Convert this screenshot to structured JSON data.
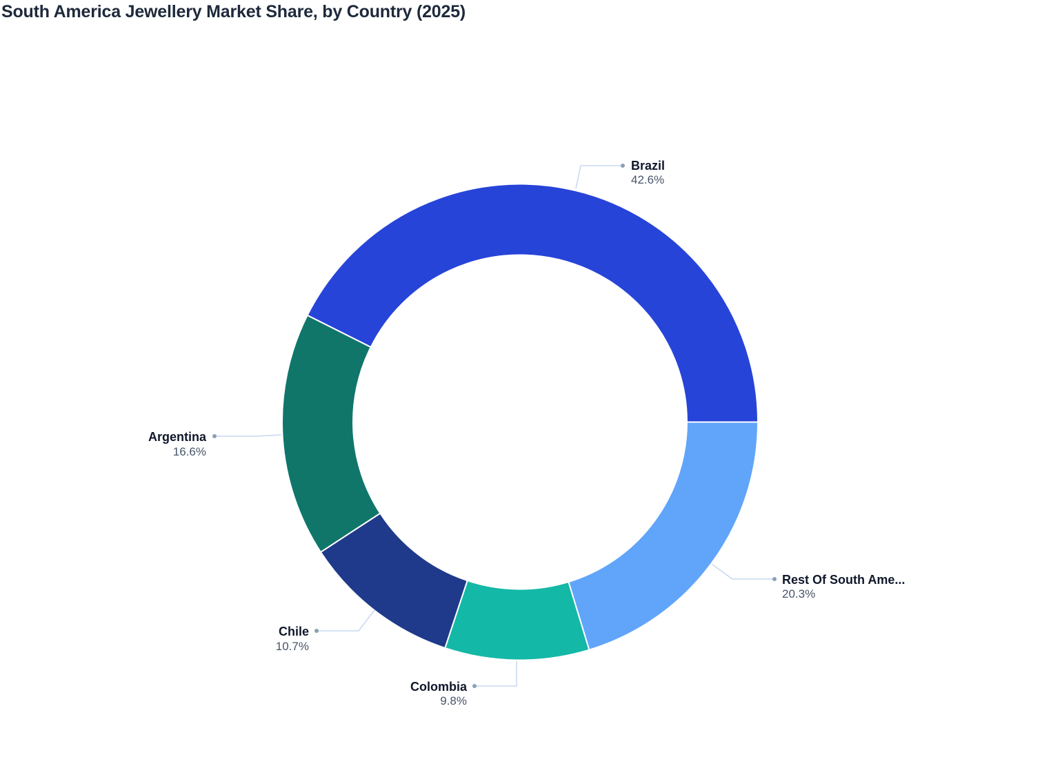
{
  "title": "South America Jewellery Market Share, by Country (2025)",
  "chart_data": {
    "type": "pie",
    "variant": "donut",
    "title": "South America Jewellery Market Share, by Country (2025)",
    "categories": [
      "Brazil",
      "Argentina",
      "Chile",
      "Colombia",
      "Rest Of South America"
    ],
    "values": [
      42.6,
      16.6,
      10.7,
      9.8,
      20.3
    ],
    "unit": "%",
    "colors": [
      "#2744d8",
      "#10766a",
      "#1f3a8a",
      "#14b8a6",
      "#60a5fa"
    ],
    "display_labels": [
      "Brazil",
      "Argentina",
      "Chile",
      "Colombia",
      "Rest Of South Ame..."
    ],
    "value_labels": [
      "42.6%",
      "16.6%",
      "10.7%",
      "9.8%",
      "20.3%"
    ],
    "start_angle_deg": 0,
    "direction": "counterclockwise",
    "legend": "none (leader-line labels)"
  },
  "labels": {
    "brazil": {
      "name": "Brazil",
      "value": "42.6%"
    },
    "argentina": {
      "name": "Argentina",
      "value": "16.6%"
    },
    "chile": {
      "name": "Chile",
      "value": "10.7%"
    },
    "colombia": {
      "name": "Colombia",
      "value": "9.8%"
    },
    "rest": {
      "name": "Rest Of South Ame...",
      "value": "20.3%"
    }
  },
  "style": {
    "leader_color": "#c7d7f0",
    "dot_color": "#8ca0b3",
    "separator_color": "#ffffff"
  }
}
